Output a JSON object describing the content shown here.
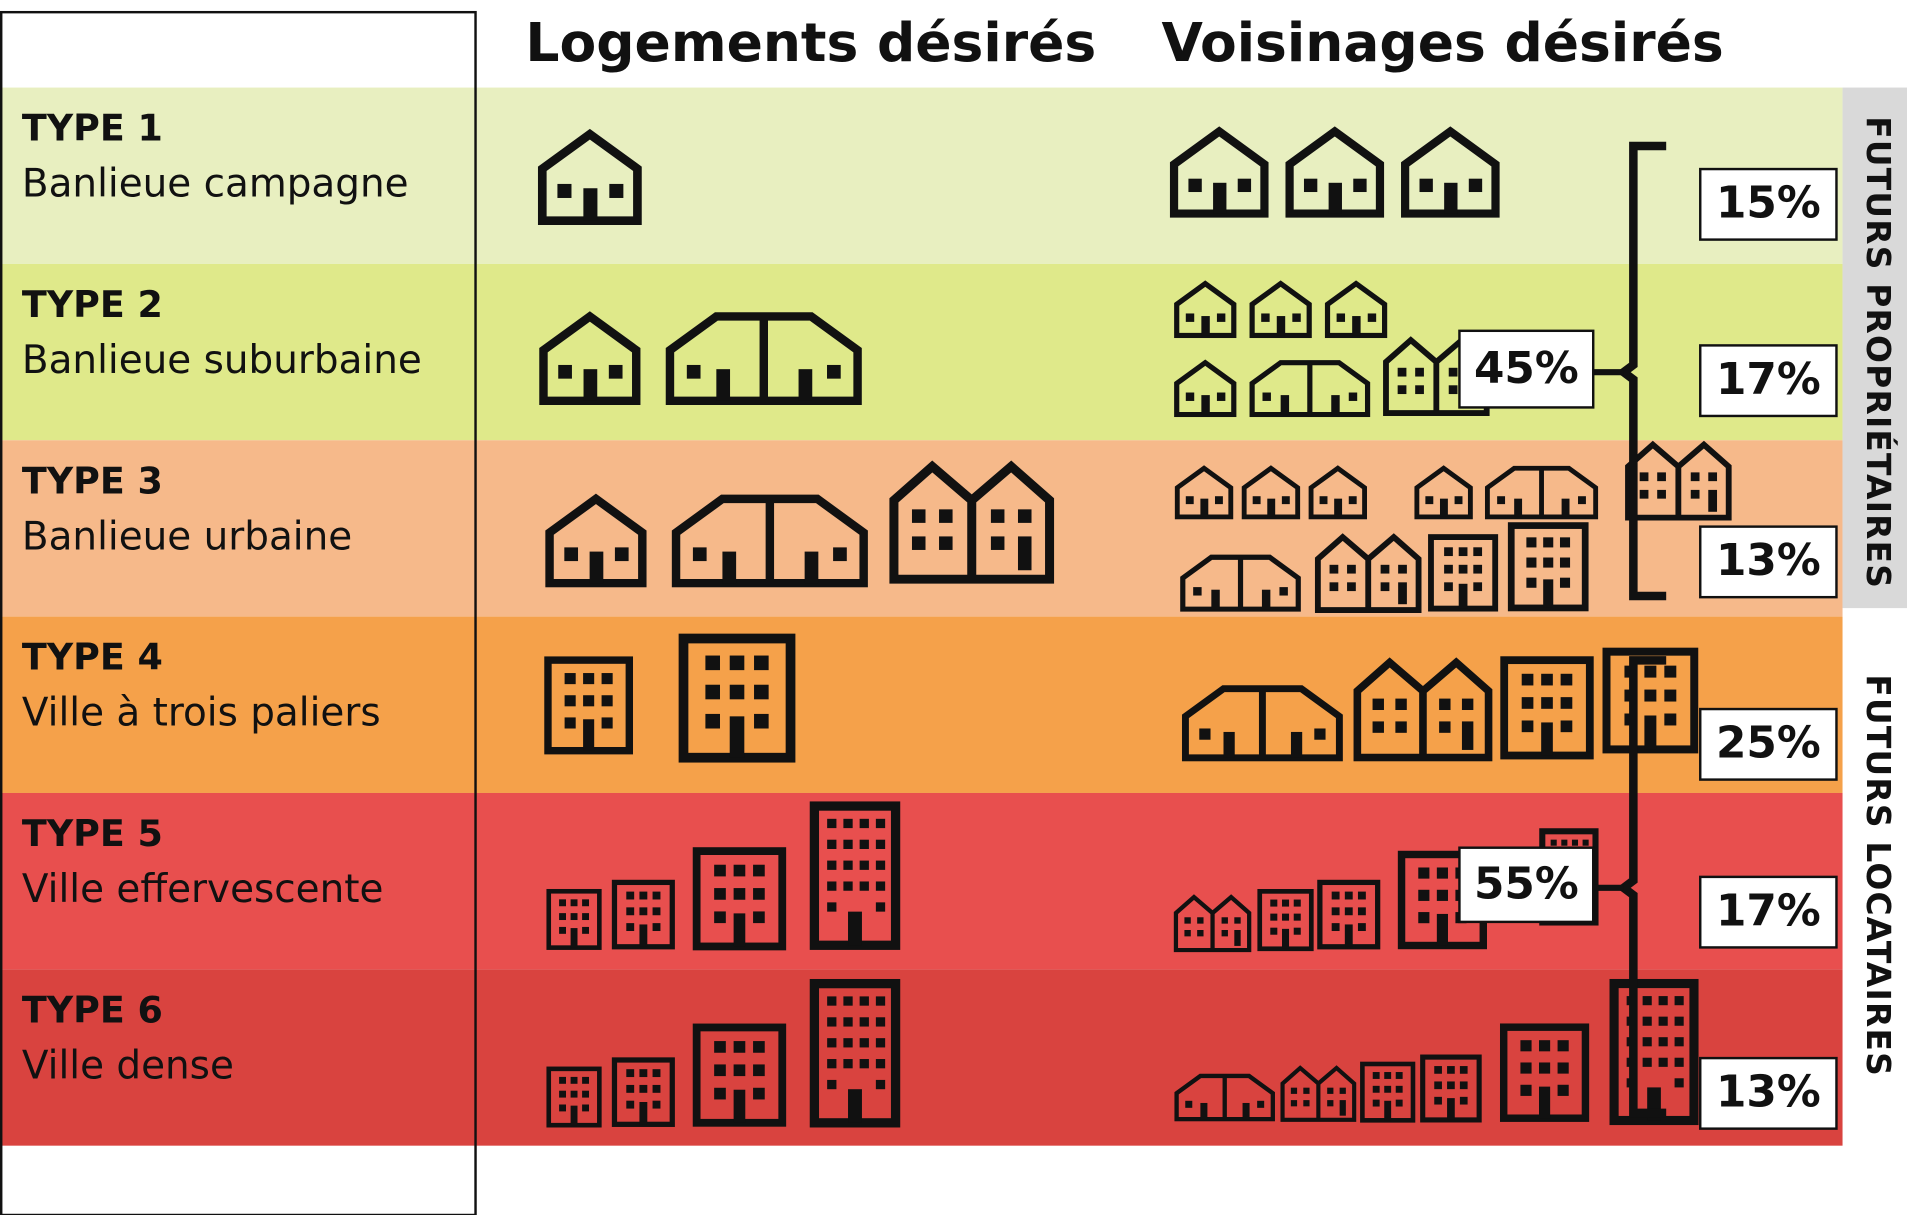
{
  "columns": [
    "Logements désirés",
    "Voisinages désirés"
  ],
  "rows": [
    {
      "type": "TYPE 1",
      "name": "Banlieue campagne",
      "percent": "15%",
      "color": "#e8efc0"
    },
    {
      "type": "TYPE 2",
      "name": "Banlieue suburbaine",
      "percent": "17%",
      "color": "#dfe98a"
    },
    {
      "type": "TYPE 3",
      "name": "Banlieue urbaine",
      "percent": "13%",
      "color": "#f6b98a"
    },
    {
      "type": "TYPE 4",
      "name": "Ville à trois paliers",
      "percent": "25%",
      "color": "#f5a14a"
    },
    {
      "type": "TYPE 5",
      "name": "Ville effervescente",
      "percent": "17%",
      "color": "#e84f4e"
    },
    {
      "type": "TYPE 6",
      "name": "Ville dense",
      "percent": "13%",
      "color": "#d9433f"
    }
  ],
  "groups": [
    {
      "label": "FUTURS PROPRIÉTAIRES",
      "total": "45%"
    },
    {
      "label": "FUTURS LOCATAIRES",
      "total": "55%"
    }
  ]
}
